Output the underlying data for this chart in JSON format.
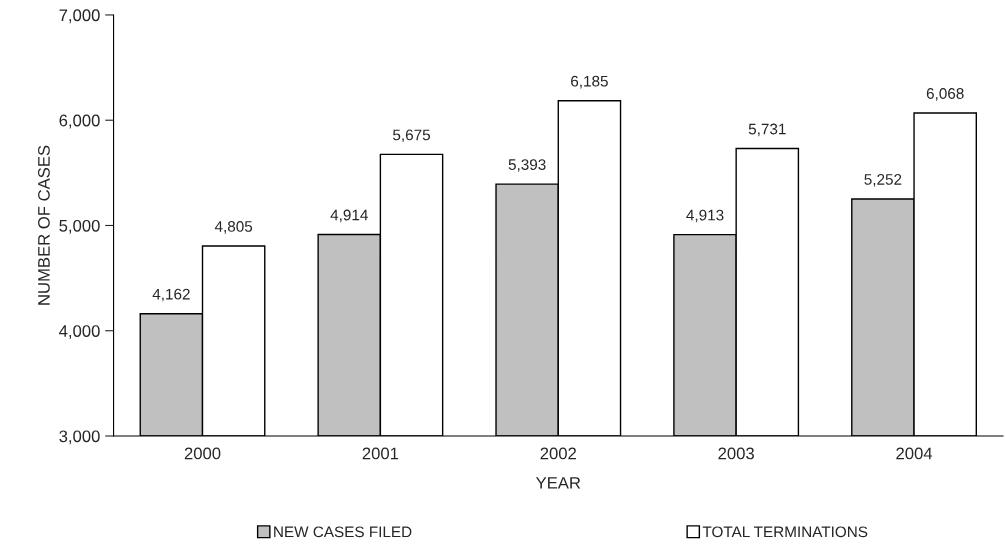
{
  "chart_data": {
    "type": "bar",
    "xlabel": "YEAR",
    "ylabel": "NUMBER OF CASES",
    "categories": [
      "2000",
      "2001",
      "2002",
      "2003",
      "2004"
    ],
    "series": [
      {
        "name": "NEW CASES FILED",
        "color": "#c0c0c0",
        "values": [
          4162,
          4914,
          5393,
          4913,
          5252
        ],
        "value_labels": [
          "4,162",
          "4,914",
          "5,393",
          "4,913",
          "5,252"
        ]
      },
      {
        "name": "TOTAL TERMINATIONS",
        "color": "#ffffff",
        "values": [
          4805,
          5675,
          6185,
          5731,
          6068
        ],
        "value_labels": [
          "4,805",
          "5,675",
          "6,185",
          "5,731",
          "6,068"
        ]
      }
    ],
    "ylim": [
      3000,
      7000
    ],
    "yticks": [
      {
        "value": 3000,
        "label": "3,000"
      },
      {
        "value": 4000,
        "label": "4,000"
      },
      {
        "value": 5000,
        "label": "5,000"
      },
      {
        "value": 6000,
        "label": "6,000"
      },
      {
        "value": 7000,
        "label": "7,000"
      }
    ],
    "grid": false,
    "legend": "bottom"
  }
}
